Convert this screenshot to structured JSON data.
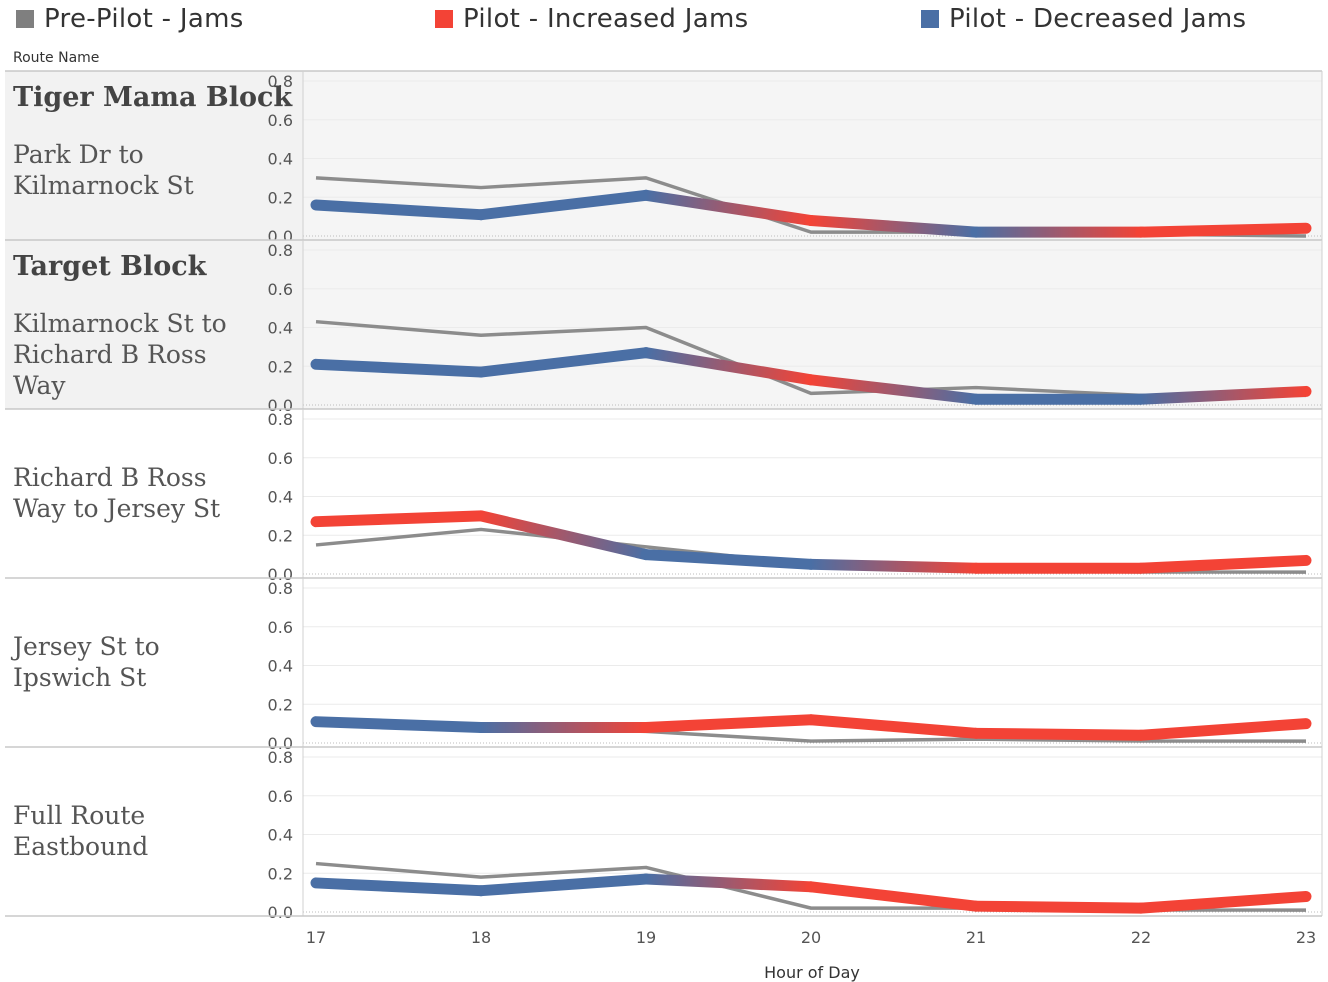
{
  "legend": {
    "items": [
      {
        "label": "Pre-Pilot - Jams",
        "color": "#7f7f7f"
      },
      {
        "label": "Pilot - Increased Jams",
        "color": "#f34336"
      },
      {
        "label": "Pilot - Decreased Jams",
        "color": "#4a6fa5"
      }
    ]
  },
  "chart_data": {
    "type": "line",
    "row_header": "Route Name",
    "xlabel": "Hour of Day",
    "x": [
      17,
      18,
      19,
      20,
      21,
      22,
      23
    ],
    "ylim": [
      0,
      0.8
    ],
    "yticks": [
      "0.0",
      "0.2",
      "0.4",
      "0.6",
      "0.8"
    ],
    "colors": {
      "prepilot": "#8c8c8c",
      "increased": "#f34336",
      "decreased": "#4a6fa5"
    },
    "panels": [
      {
        "block": "Tiger Mama Block",
        "route": [
          "Park Dr to",
          "Kilmarnock St"
        ],
        "highlighted": true,
        "series": [
          {
            "name": "Pre-Pilot - Jams",
            "values": [
              0.3,
              0.25,
              0.3,
              0.02,
              0.02,
              0.01,
              0.0
            ]
          },
          {
            "name": "Pilot",
            "values": [
              0.16,
              0.11,
              0.21,
              0.08,
              0.02,
              0.02,
              0.04
            ]
          }
        ]
      },
      {
        "block": "Target Block",
        "route": [
          "Kilmarnock St to",
          "Richard B Ross",
          "Way"
        ],
        "highlighted": true,
        "series": [
          {
            "name": "Pre-Pilot - Jams",
            "values": [
              0.43,
              0.36,
              0.4,
              0.06,
              0.09,
              0.05,
              0.05
            ]
          },
          {
            "name": "Pilot",
            "values": [
              0.21,
              0.17,
              0.27,
              0.13,
              0.03,
              0.03,
              0.07
            ]
          }
        ]
      },
      {
        "block": "",
        "route": [
          "Richard B Ross",
          "Way to Jersey St"
        ],
        "highlighted": false,
        "series": [
          {
            "name": "Pre-Pilot - Jams",
            "values": [
              0.15,
              0.23,
              0.14,
              0.05,
              0.02,
              0.01,
              0.01
            ]
          },
          {
            "name": "Pilot",
            "values": [
              0.27,
              0.3,
              0.1,
              0.05,
              0.03,
              0.03,
              0.07
            ]
          }
        ]
      },
      {
        "block": "",
        "route": [
          "Jersey St to",
          "Ipswich St"
        ],
        "highlighted": false,
        "series": [
          {
            "name": "Pre-Pilot - Jams",
            "values": [
              0.11,
              0.08,
              0.06,
              0.01,
              0.02,
              0.01,
              0.01
            ]
          },
          {
            "name": "Pilot",
            "values": [
              0.11,
              0.08,
              0.08,
              0.12,
              0.05,
              0.04,
              0.1
            ]
          }
        ]
      },
      {
        "block": "",
        "route": [
          "Full Route",
          "Eastbound"
        ],
        "highlighted": false,
        "series": [
          {
            "name": "Pre-Pilot - Jams",
            "values": [
              0.25,
              0.18,
              0.23,
              0.02,
              0.02,
              0.01,
              0.01
            ]
          },
          {
            "name": "Pilot",
            "values": [
              0.15,
              0.11,
              0.17,
              0.13,
              0.03,
              0.02,
              0.08
            ]
          }
        ]
      }
    ]
  }
}
